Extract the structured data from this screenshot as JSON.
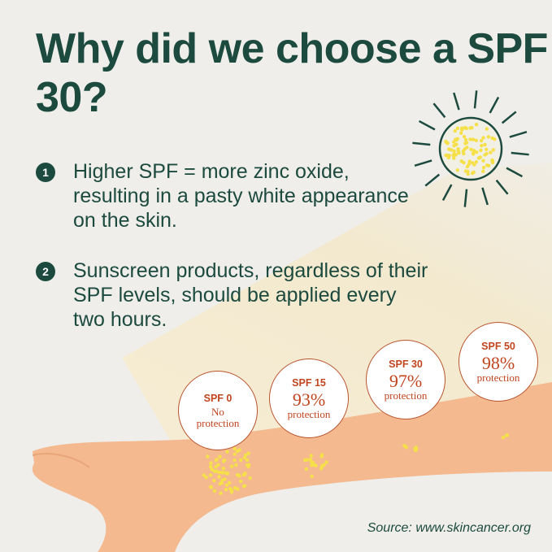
{
  "title": "Why did we choose a SPF 30?",
  "points": [
    {
      "number": "1",
      "text": "Higher SPF = more zinc oxide, resulting in a pasty white appearance on the skin."
    },
    {
      "number": "2",
      "text": "Sunscreen products, regardless of their SPF levels, should be applied every two hours."
    }
  ],
  "badges": [
    {
      "spf": "SPF 0",
      "value": "",
      "label": "No protection"
    },
    {
      "spf": "SPF 15",
      "value": "93%",
      "label": "protection"
    },
    {
      "spf": "SPF 30",
      "value": "97%",
      "label": "protection"
    },
    {
      "spf": "SPF 50",
      "value": "98%",
      "label": "protection"
    }
  ],
  "source": "Source: www.skincancer.org",
  "colors": {
    "heading": "#1c4a3e",
    "accent": "#c1451f",
    "skin": "#f4b98f",
    "dots": "#f5e04a",
    "background": "#efeeeb"
  }
}
